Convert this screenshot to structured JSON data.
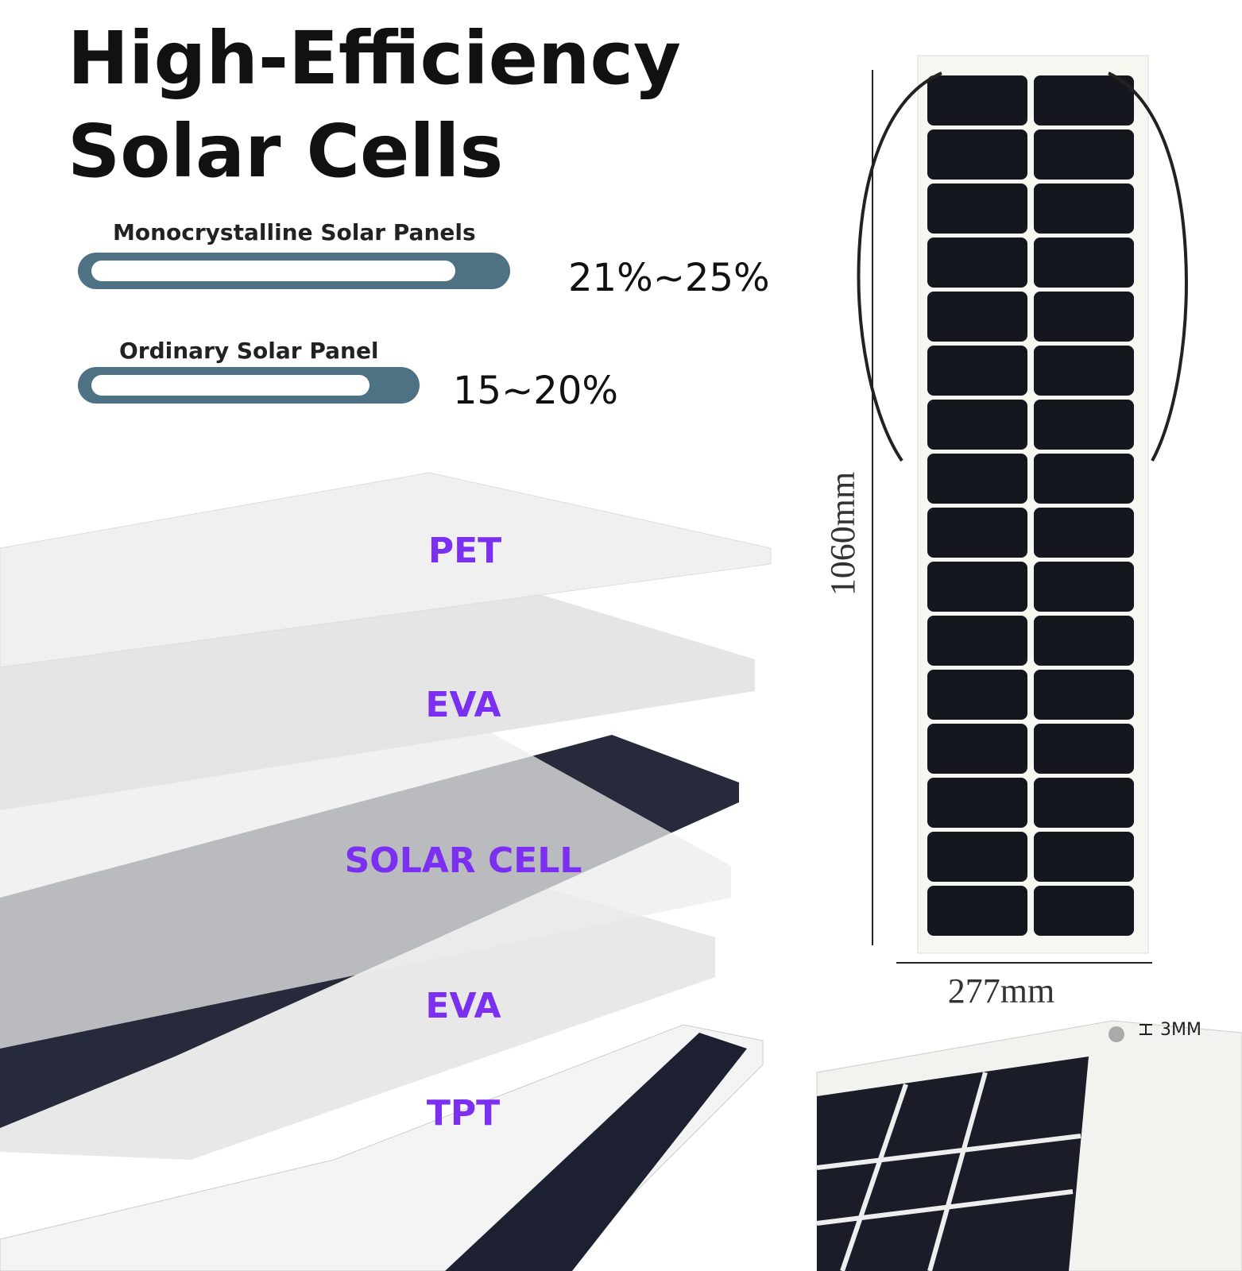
{
  "header": {
    "title": [
      "High-Efficiency",
      "Solar Cells"
    ]
  },
  "comparisons": [
    {
      "label": "Monocrystalline Solar Panels",
      "value": "21%~25%"
    },
    {
      "label": "Ordinary Solar Panel",
      "value": "15~20%"
    }
  ],
  "layers": [
    "PET",
    "EVA",
    "SOLAR CELL",
    "EVA",
    "TPT"
  ],
  "dimensions": {
    "height": "1060mm",
    "width": "277mm",
    "thickness": "3MM"
  }
}
